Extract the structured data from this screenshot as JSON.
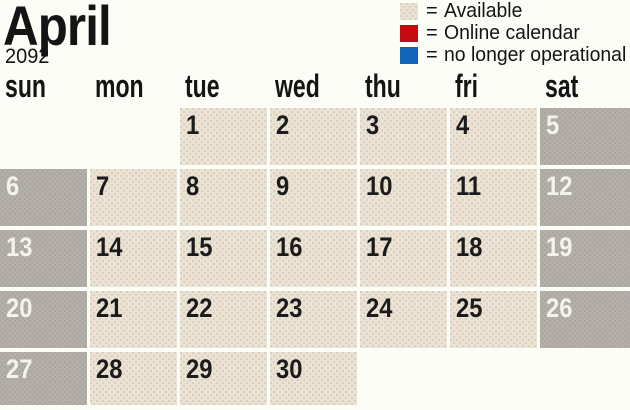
{
  "page": {
    "background": "#fbfdf6"
  },
  "title": {
    "month": "April",
    "year": "2092"
  },
  "legend": {
    "equals": "=",
    "items": [
      {
        "icon": "available-swatch-icon",
        "color": "#e9e2d3",
        "label": "Available"
      },
      {
        "icon": "online-calendar-swatch-icon",
        "color": "#c40b0e",
        "label": "Online calendar"
      },
      {
        "icon": "no-longer-operational-swatch-icon",
        "color": "#1365bc",
        "label": "no longer operational"
      }
    ]
  },
  "calendar": {
    "day_headers": [
      "sun",
      "mon",
      "tue",
      "wed",
      "thu",
      "fri",
      "sat"
    ],
    "weeks": [
      [
        "",
        "",
        "1",
        "2",
        "3",
        "4",
        "5"
      ],
      [
        "6",
        "7",
        "8",
        "9",
        "10",
        "11",
        "12"
      ],
      [
        "13",
        "14",
        "15",
        "16",
        "17",
        "18",
        "19"
      ],
      [
        "20",
        "21",
        "22",
        "23",
        "24",
        "25",
        "26"
      ],
      [
        "27",
        "28",
        "29",
        "30",
        "",
        "",
        ""
      ]
    ],
    "weekend_columns": [
      0,
      6
    ],
    "colors": {
      "available_cell": "#eae3d5",
      "weekend_cell": "#b4b1aa",
      "date_text": "#1b1b1b",
      "weekend_date_text": "#f4f2ec"
    }
  }
}
